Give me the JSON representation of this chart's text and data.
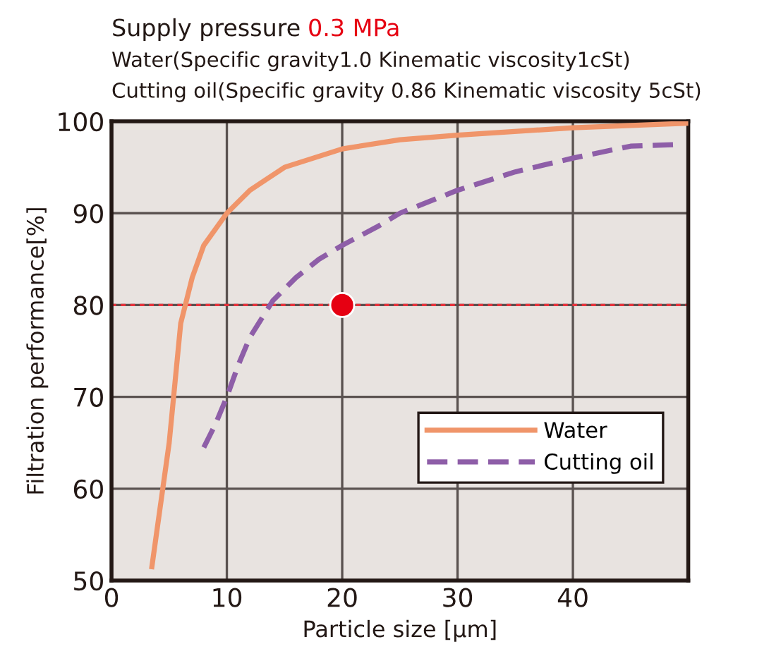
{
  "chart_data": {
    "type": "line",
    "title": "Supply pressure ",
    "subtitle": "0.3 MPa",
    "annotations": [
      "Water(Specific gravity1.0 Kinematic viscosity1cSt)",
      "Cutting oil(Specific gravity 0.86 Kinematic viscosity 5cSt)"
    ],
    "xlabel": "Particle size [μm]",
    "ylabel": "Filtration performance[%]",
    "series": [
      {
        "name": "Water",
        "color": "#f0956a",
        "line_style": "solid",
        "x": [
          3.5,
          5,
          6,
          7,
          8,
          10,
          12,
          15,
          20,
          25,
          30,
          40,
          50
        ],
        "values": [
          51.5,
          65,
          78,
          83,
          86.5,
          90,
          92.5,
          95,
          97,
          98,
          98.5,
          99.3,
          99.8
        ]
      },
      {
        "name": "Cutting oil",
        "color": "#8e5ea8",
        "line_style": "dashed",
        "x": [
          8,
          9,
          10,
          11,
          12,
          14,
          16,
          18,
          20,
          23,
          25,
          30,
          35,
          40,
          45,
          49.5
        ],
        "values": [
          64.5,
          67,
          70,
          73.5,
          76.5,
          80.5,
          83,
          85,
          86.5,
          88.5,
          90,
          92.5,
          94.5,
          96,
          97.3,
          97.5
        ]
      },
      {
        "type": "scatter",
        "color": "#e60012",
        "marker": "circle",
        "x": [
          20
        ],
        "values": [
          80
        ]
      }
    ],
    "ref_lines": [
      {
        "axis": "y",
        "value": 80,
        "color": "#e8323c",
        "line_style": "dotted"
      }
    ],
    "xlim": [
      0,
      50
    ],
    "xticks": [
      0,
      10,
      20,
      30,
      40
    ],
    "ylim": [
      50,
      100
    ],
    "yticks": [
      50,
      60,
      70,
      80,
      90,
      100
    ],
    "grid": true,
    "legend": "lower right"
  }
}
